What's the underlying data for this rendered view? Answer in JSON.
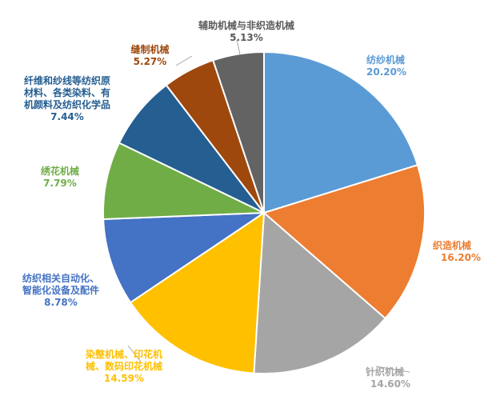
{
  "chart_data": {
    "type": "pie",
    "title": "",
    "slices": [
      {
        "label": "纺纱机械",
        "value": 20.2,
        "text": "20.20%",
        "color": "#5B9BD5"
      },
      {
        "label": "织造机械",
        "value": 16.2,
        "text": "16.20%",
        "color": "#ED7D31"
      },
      {
        "label": "针织机械",
        "value": 14.6,
        "text": "14.60%",
        "color": "#A5A5A5"
      },
      {
        "label": "染整机械、印花机械、数码印花机械",
        "label_lines": [
          "染整机械、印花机",
          "械、数码印花机械"
        ],
        "value": 14.59,
        "text": "14.59%",
        "color": "#FFC000"
      },
      {
        "label": "纺织相关自动化、智能化设备及配件",
        "label_lines": [
          "纺织相关自动化、",
          "智能化设备及配件"
        ],
        "value": 8.78,
        "text": "8.78%",
        "color": "#4472C4"
      },
      {
        "label": "绣花机械",
        "value": 7.79,
        "text": "7.79%",
        "color": "#70AD47"
      },
      {
        "label": "纤维和纱线等纺织原材料、各类染料、有机颜料及纺织化学品",
        "label_lines": [
          "纤维和纱线等纺织原",
          "材料、各类染料、有",
          "机颜料及纺织化学品"
        ],
        "value": 7.44,
        "text": "7.44%",
        "color": "#255E91"
      },
      {
        "label": "缝制机械",
        "value": 5.27,
        "text": "5.27%",
        "color": "#9E480E"
      },
      {
        "label": "辅助机械与非织造机械",
        "value": 5.13,
        "text": "5.13%",
        "color": "#636363"
      }
    ]
  }
}
